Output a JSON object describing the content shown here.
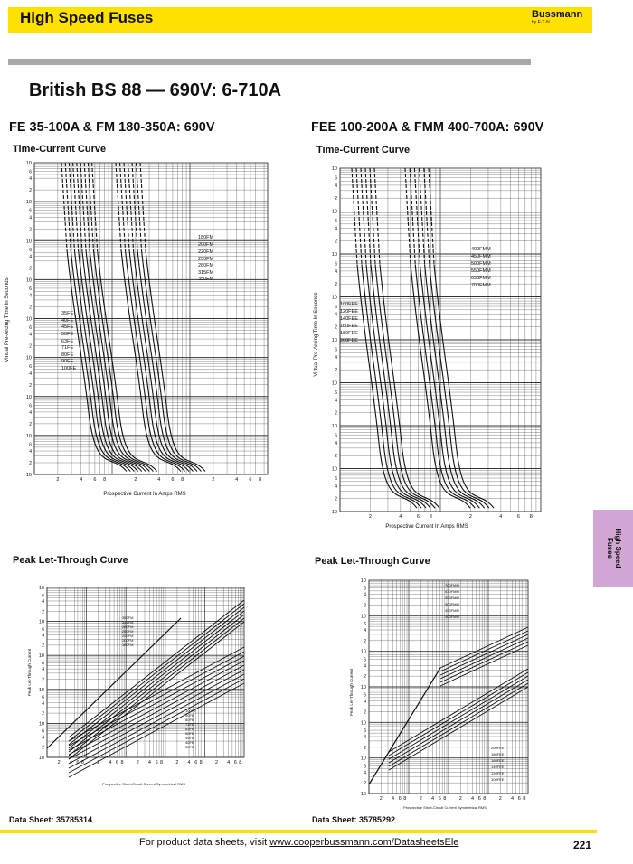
{
  "header": {
    "title": "High Speed Fuses",
    "logo_main": "Bussmann",
    "logo_sub": "by F·T·N"
  },
  "main_title": "British BS 88 — 690V:  6-710A",
  "left": {
    "section": "FE 35-100A & FM 180-350A: 690V",
    "tc_title": "Time-Current Curve",
    "tc_xlabel": "Prospective Current In Amps RMS",
    "tc_ylabel": "Virtual Pre-Arcing Time In Seconds",
    "tc_fm_labels": [
      "180FM",
      "200FM",
      "220FM",
      "250FM",
      "280FM",
      "315FM",
      "350FM"
    ],
    "tc_fe_labels": [
      "35FE",
      "40FE",
      "45FE",
      "50FE",
      "63FE",
      "71FE",
      "80FE",
      "90FE",
      "100FE"
    ],
    "pl_title": "Peak Let-Through Curve",
    "pl_xlabel": "Prospective Short-Circuit Current Symmetrical RMS",
    "pl_ylabel": "Peak Let-Through Current",
    "pl_fm_labels": [
      "350FM",
      "315FM",
      "280FM",
      "250FM",
      "220FM",
      "200FM",
      "180FM"
    ],
    "pl_fe_labels": [
      "100FE",
      "90FE",
      "80FE",
      "71FE",
      "63FE",
      "50FE",
      "45FE",
      "40FE",
      "35FE"
    ],
    "datasheet": "Data Sheet: 35785314"
  },
  "right": {
    "section": "FEE 100-200A & FMM 400-700A: 690V",
    "tc_title": "Time-Current Curve",
    "tc_xlabel": "Prospective Current In Amps RMS",
    "tc_ylabel": "Virtual Pre-Arcing Time In Seconds",
    "tc_fmm_labels": [
      "400FMM",
      "450FMM",
      "500FMM",
      "550FMM",
      "630FMM",
      "700FMM"
    ],
    "tc_fee_labels": [
      "100FEE",
      "120FEE",
      "140FEE",
      "160FEE",
      "180FEE",
      "200FEE"
    ],
    "pl_title": "Peak Let-Through Curve",
    "pl_xlabel": "Prospective Short-Circuit Current Symmetrical RMS",
    "pl_ylabel": "Peak Let-Through Current",
    "pl_fmm_labels": [
      "700FMM",
      "630FMM",
      "550FMM",
      "500FMM",
      "450FMM",
      "400FMM"
    ],
    "pl_fee_labels": [
      "200FEE",
      "180FEE",
      "160FEE",
      "140FEE",
      "120FEE",
      "100FEE"
    ],
    "datasheet": "Data Sheet: 35785292"
  },
  "side_tab": {
    "line1": "High Speed",
    "line2": "Fuses"
  },
  "footer": {
    "prefix": "For product data sheets, visit ",
    "link": "www.cooperbussmann.com/DatasheetsEle",
    "page": "221"
  },
  "colors": {
    "accent": "#ffe100",
    "rule": "#a8a8a8",
    "tab": "#d2a7d6"
  }
}
